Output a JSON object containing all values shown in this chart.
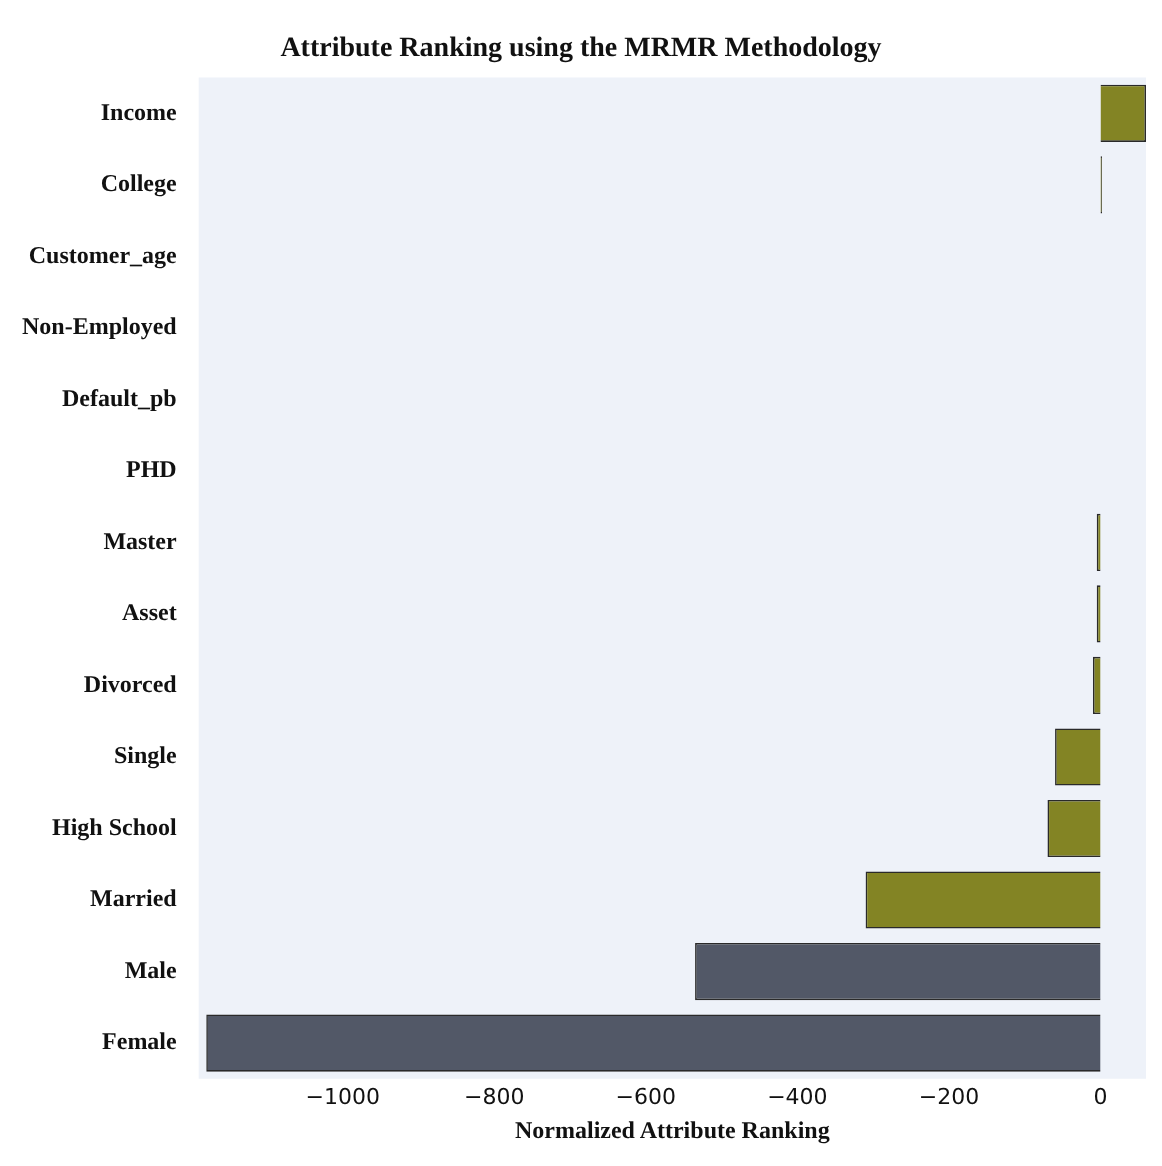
{
  "chart_data": {
    "type": "bar",
    "orientation": "horizontal",
    "title": "Attribute Ranking using the MRMR Methodology",
    "xlabel": "Normalized Attribute Ranking",
    "categories": [
      "Income",
      "College",
      "Customer_age",
      "Non-Employed",
      "Default_pb",
      "PHD",
      "Master",
      "Asset",
      "Divorced",
      "Single",
      "High School",
      "Married",
      "Male",
      "Female"
    ],
    "values": [
      60,
      2,
      null,
      null,
      null,
      null,
      -5,
      -5,
      -10,
      -60,
      -70,
      -310,
      -535,
      -1180
    ],
    "colors": [
      "#838424",
      "#838424",
      "#838424",
      "#838424",
      "#838424",
      "#838424",
      "#838424",
      "#838424",
      "#838424",
      "#838424",
      "#838424",
      "#838424",
      "#525867",
      "#525867"
    ],
    "xlim": [
      -1190,
      60
    ],
    "xticks": [
      -1000,
      -800,
      -600,
      -400,
      -200,
      0
    ],
    "grid": false,
    "legend": false
  }
}
